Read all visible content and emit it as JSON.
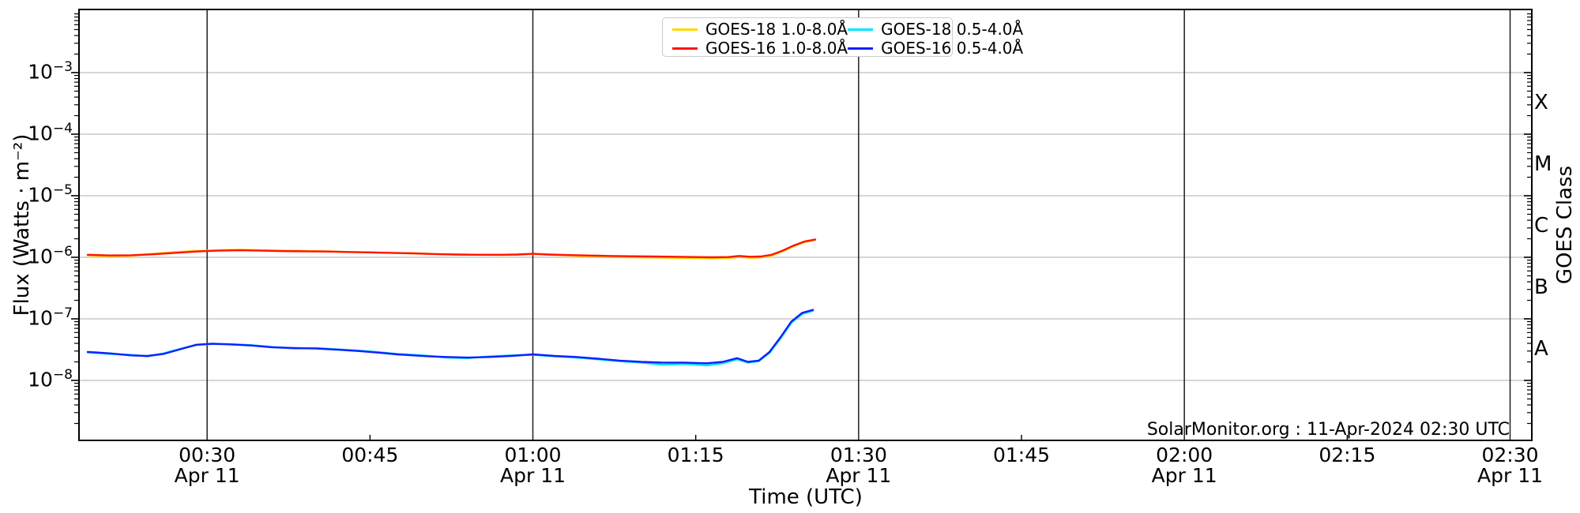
{
  "background": "#ffffff",
  "axes": {
    "x_label": "Time (UTC)",
    "y_label": "Flux (Watts · m⁻²)",
    "y2_label": "GOES Class"
  },
  "watermark": "SolarMonitor.org : 11-Apr-2024 02:30 UTC",
  "legend": {
    "items": [
      {
        "label": "GOES-18 1.0-8.0Å",
        "color": "#ffd700"
      },
      {
        "label": "GOES-18 0.5-4.0Å",
        "color": "#00e5ff"
      },
      {
        "label": "GOES-16 1.0-8.0Å",
        "color": "#ff1400"
      },
      {
        "label": "GOES-16 0.5-4.0Å",
        "color": "#1020ff"
      }
    ]
  },
  "chart_data": {
    "type": "line",
    "title": "",
    "x_unit": "minutes after 00:00 UTC, 11-Apr-2024",
    "grid": true,
    "legend_position": "top-center",
    "x_axis": {
      "range_minutes": [
        18.2,
        152.0
      ],
      "major_ticks": [
        {
          "t": 30,
          "label": "00:30",
          "sublabel": "Apr 11"
        },
        {
          "t": 60,
          "label": "01:00",
          "sublabel": "Apr 11"
        },
        {
          "t": 90,
          "label": "01:30",
          "sublabel": "Apr 11"
        },
        {
          "t": 120,
          "label": "02:00",
          "sublabel": "Apr 11"
        },
        {
          "t": 150,
          "label": "02:30",
          "sublabel": "Apr 11"
        }
      ],
      "minor_ticks": [
        {
          "t": 45,
          "label": "00:45"
        },
        {
          "t": 75,
          "label": "01:15"
        },
        {
          "t": 105,
          "label": "01:45"
        },
        {
          "t": 135,
          "label": "02:15"
        }
      ]
    },
    "y_axis": {
      "scale": "log",
      "range": [
        1e-09,
        0.01
      ],
      "tick_exponents": [
        -3,
        -4,
        -5,
        -6,
        -7,
        -8
      ],
      "unit": "Watts · m⁻²"
    },
    "y2_axis": {
      "class_labels": [
        {
          "label": "X",
          "log_center": -3.5
        },
        {
          "label": "M",
          "log_center": -4.5
        },
        {
          "label": "C",
          "log_center": -5.5
        },
        {
          "label": "B",
          "log_center": -6.5
        },
        {
          "label": "A",
          "log_center": -7.5
        }
      ]
    },
    "gridlines": {
      "vertical_minutes": [
        30,
        60,
        90,
        120,
        150
      ],
      "horizontal_exponents": [
        -3,
        -4,
        -5,
        -6,
        -7,
        -8
      ],
      "vertical_color": "#1f1f1f",
      "horizontal_color": "#c8c8c8"
    },
    "series": [
      {
        "name": "GOES-18 1.0-8.0Å",
        "color": "#ffd700",
        "x": [
          19,
          21,
          23,
          25,
          27,
          29,
          31,
          33,
          35,
          37,
          39,
          41,
          43,
          45,
          47,
          49,
          51,
          53,
          55,
          57,
          58.5,
          60,
          61.5,
          63,
          65,
          67,
          69,
          71,
          73,
          75,
          76.5,
          78,
          79,
          80,
          81,
          82,
          83,
          84,
          85,
          86
        ],
        "y": [
          1.07e-06,
          1.04e-06,
          1.06e-06,
          1.14e-06,
          1.21e-06,
          1.27e-06,
          1.31e-06,
          1.33e-06,
          1.31e-06,
          1.29e-06,
          1.27e-06,
          1.25e-06,
          1.22e-06,
          1.2e-06,
          1.18e-06,
          1.16e-06,
          1.13e-06,
          1.11e-06,
          1.1e-06,
          1.09e-06,
          1.1e-06,
          1.13e-06,
          1.1e-06,
          1.08e-06,
          1.03e-06,
          1.01e-06,
          1e-06,
          9.9e-07,
          9.8e-07,
          9.7e-07,
          9.6e-07,
          9.7e-07,
          1.01e-06,
          9.8e-07,
          9.9e-07,
          1.07e-06,
          1.25e-06,
          1.51e-06,
          1.76e-06,
          1.91e-06
        ]
      },
      {
        "name": "GOES-16 1.0-8.0Å",
        "color": "#ff1400",
        "x": [
          19,
          21,
          23,
          25,
          27,
          29,
          31,
          33,
          35,
          37,
          39,
          41,
          43,
          45,
          47,
          49,
          51,
          53,
          55,
          57,
          58.5,
          60,
          61.5,
          63,
          65,
          67,
          69,
          71,
          73,
          75,
          76.5,
          78,
          79,
          80,
          81,
          82,
          83,
          84,
          85,
          86
        ],
        "y": [
          1.1e-06,
          1.07e-06,
          1.08e-06,
          1.12e-06,
          1.18e-06,
          1.24e-06,
          1.28e-06,
          1.3e-06,
          1.28e-06,
          1.26e-06,
          1.25e-06,
          1.24e-06,
          1.22e-06,
          1.2e-06,
          1.18e-06,
          1.16e-06,
          1.13e-06,
          1.11e-06,
          1.1e-06,
          1.1e-06,
          1.11e-06,
          1.14e-06,
          1.11e-06,
          1.09e-06,
          1.07e-06,
          1.05e-06,
          1.04e-06,
          1.03e-06,
          1.02e-06,
          1.01e-06,
          1e-06,
          1.01e-06,
          1.05e-06,
          1.02e-06,
          1.03e-06,
          1.1e-06,
          1.28e-06,
          1.55e-06,
          1.8e-06,
          1.95e-06
        ]
      },
      {
        "name": "GOES-18 0.5-4.0Å",
        "color": "#00e5ff",
        "x": [
          19,
          21,
          23,
          24.5,
          26,
          27.5,
          29,
          30.5,
          32,
          34,
          36,
          38,
          40,
          42,
          44,
          46,
          47.5,
          49,
          50.5,
          52,
          54,
          56,
          58,
          60,
          62,
          64,
          66,
          68,
          70,
          72,
          74,
          76,
          77.5,
          78.8,
          79.8,
          80.8,
          81.8,
          82.8,
          83.8,
          84.8,
          85.8
        ],
        "y": [
          2.85e-08,
          2.7e-08,
          2.6e-08,
          2.45e-08,
          2.75e-08,
          3.25e-08,
          3.75e-08,
          3.9e-08,
          3.9e-08,
          3.75e-08,
          3.5e-08,
          3.3e-08,
          3.35e-08,
          3.2e-08,
          3.05e-08,
          2.85e-08,
          2.7e-08,
          2.6e-08,
          2.5e-08,
          2.35e-08,
          2.3e-08,
          2.45e-08,
          2.55e-08,
          2.6e-08,
          2.45e-08,
          2.35e-08,
          2.2e-08,
          2.05e-08,
          1.95e-08,
          1.8e-08,
          1.85e-08,
          1.75e-08,
          1.9e-08,
          2.2e-08,
          1.95e-08,
          2.05e-08,
          2.8e-08,
          4.8e-08,
          8.6e-08,
          1.2e-07,
          1.35e-07
        ]
      },
      {
        "name": "GOES-16 0.5-4.0Å",
        "color": "#1020ff",
        "x": [
          19,
          21,
          23,
          24.5,
          26,
          27.5,
          29,
          30.5,
          32,
          34,
          36,
          38,
          40,
          42,
          44,
          46,
          47.5,
          49,
          50.5,
          52,
          54,
          56,
          58,
          60,
          62,
          64,
          66,
          68,
          70,
          72,
          74,
          76,
          77.5,
          78.8,
          79.8,
          80.8,
          81.8,
          82.8,
          83.8,
          84.8,
          85.8
        ],
        "y": [
          2.9e-08,
          2.75e-08,
          2.55e-08,
          2.5e-08,
          2.7e-08,
          3.2e-08,
          3.8e-08,
          3.95e-08,
          3.85e-08,
          3.7e-08,
          3.45e-08,
          3.35e-08,
          3.3e-08,
          3.15e-08,
          3e-08,
          2.8e-08,
          2.65e-08,
          2.55e-08,
          2.45e-08,
          2.4e-08,
          2.35e-08,
          2.4e-08,
          2.5e-08,
          2.65e-08,
          2.5e-08,
          2.4e-08,
          2.25e-08,
          2.1e-08,
          2e-08,
          1.95e-08,
          1.95e-08,
          1.9e-08,
          2e-08,
          2.3e-08,
          2e-08,
          2.1e-08,
          2.9e-08,
          5e-08,
          9e-08,
          1.25e-07,
          1.4e-07
        ]
      }
    ]
  }
}
